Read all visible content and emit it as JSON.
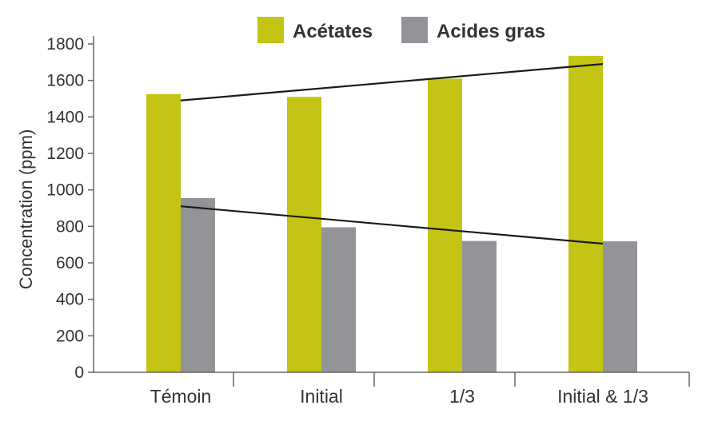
{
  "chart_data": {
    "type": "bar",
    "categories": [
      "Témoin",
      "Initial",
      "1/3",
      "Initial & 1/3"
    ],
    "series": [
      {
        "name": "Acétates",
        "color": "#c4c414",
        "values": [
          1525,
          1510,
          1610,
          1735
        ]
      },
      {
        "name": "Acides gras",
        "color": "#939497",
        "values": [
          955,
          795,
          720,
          718
        ]
      }
    ],
    "trend_lines": [
      {
        "series": "Acétates",
        "from": [
          0,
          1490
        ],
        "to": [
          3,
          1690
        ]
      },
      {
        "series": "Acides gras",
        "from": [
          0,
          910
        ],
        "to": [
          3,
          705
        ]
      }
    ],
    "ylabel": "Concentration (ppm)",
    "xlabel": "",
    "ylim": [
      0,
      1800
    ],
    "yticks": [
      0,
      200,
      400,
      600,
      800,
      1000,
      1200,
      1400,
      1600,
      1800
    ],
    "legend_position": "top",
    "grid": false
  }
}
